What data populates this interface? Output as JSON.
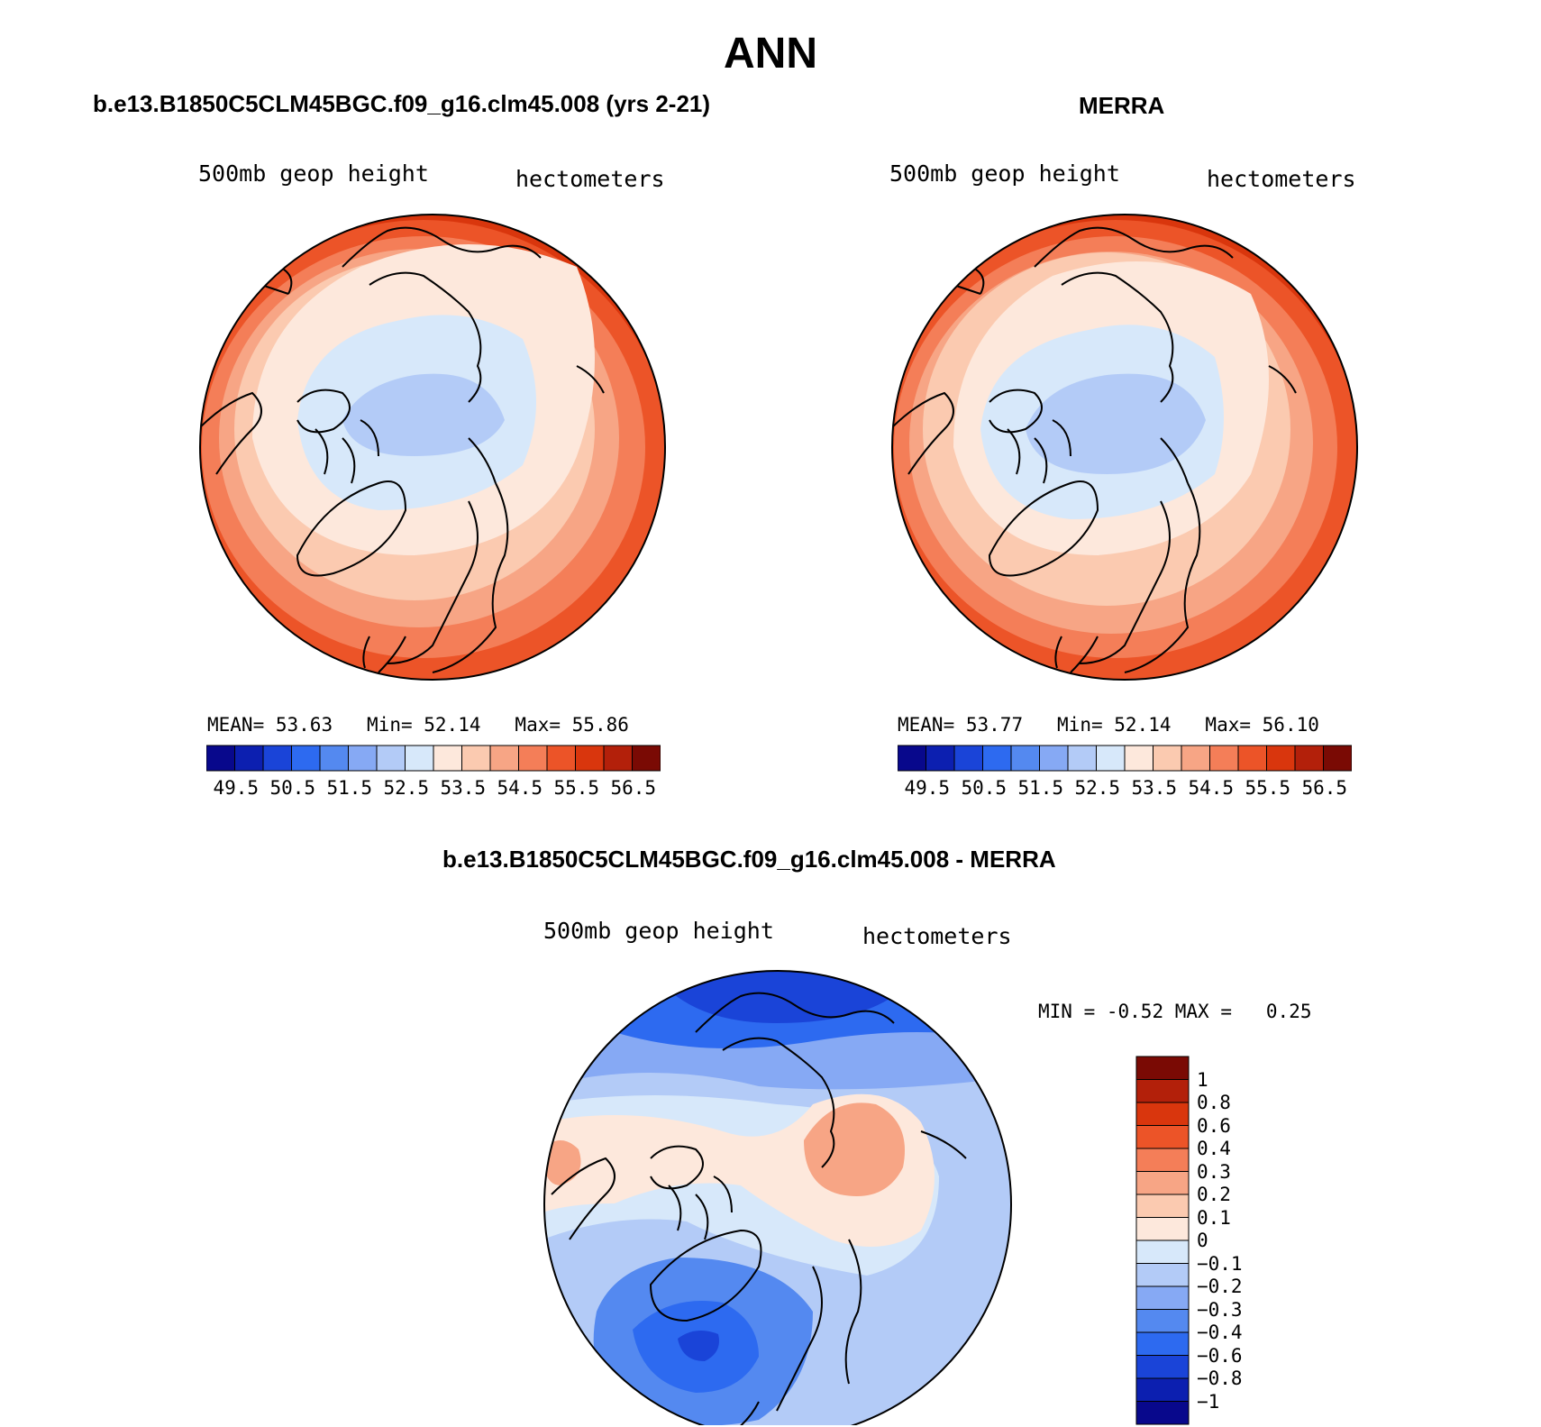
{
  "figure": {
    "title": "ANN"
  },
  "panels": [
    {
      "title": "b.e13.B1850C5CLM45BGC.f09_g16.clm45.008 (yrs 2-21)",
      "variable": "500mb geop height",
      "units": "hectometers",
      "stats": {
        "mean_label": "MEAN=",
        "mean": "53.63",
        "min_label": "Min=",
        "min": "52.14",
        "max_label": "Max=",
        "max": "55.86"
      },
      "colorbar_ticks": [
        "49.5",
        "50.5",
        "51.5",
        "52.5",
        "53.5",
        "54.5",
        "55.5",
        "56.5"
      ]
    },
    {
      "title": "MERRA",
      "variable": "500mb geop height",
      "units": "hectometers",
      "stats": {
        "mean_label": "MEAN=",
        "mean": "53.77",
        "min_label": "Min=",
        "min": "52.14",
        "max_label": "Max=",
        "max": "56.10"
      },
      "colorbar_ticks": [
        "49.5",
        "50.5",
        "51.5",
        "52.5",
        "53.5",
        "54.5",
        "55.5",
        "56.5"
      ]
    },
    {
      "title": "b.e13.B1850C5CLM45BGC.f09_g16.clm45.008 - MERRA",
      "variable": "500mb geop height",
      "units": "hectometers",
      "stats": {
        "min_label": "MIN =",
        "min": "-0.52",
        "max_label": "MAX =",
        "max": "0.25"
      },
      "colorbar_ticks": [
        "1",
        "0.8",
        "0.6",
        "0.4",
        "0.3",
        "0.2",
        "0.1",
        "0",
        "−0.1",
        "−0.2",
        "−0.3",
        "−0.4",
        "−0.6",
        "−0.8",
        "−1"
      ]
    }
  ],
  "colors": {
    "abs_scale": [
      "#08088c",
      "#0c1fb0",
      "#1a44d8",
      "#2d6af0",
      "#5489f0",
      "#86a9f4",
      "#b3cbf7",
      "#d7e8fa",
      "#fde8dc",
      "#fbcab0",
      "#f7a585",
      "#f47e58",
      "#ec5428",
      "#d9360d",
      "#b3200a",
      "#7a0a04"
    ],
    "diff_scale": [
      "#7a0a04",
      "#b3200a",
      "#d9360d",
      "#ec5428",
      "#f47e58",
      "#f7a585",
      "#fbcab0",
      "#fde8dc",
      "#d7e8fa",
      "#b3cbf7",
      "#86a9f4",
      "#5489f0",
      "#2d6af0",
      "#1a44d8",
      "#0c1fb0",
      "#08088c"
    ]
  }
}
